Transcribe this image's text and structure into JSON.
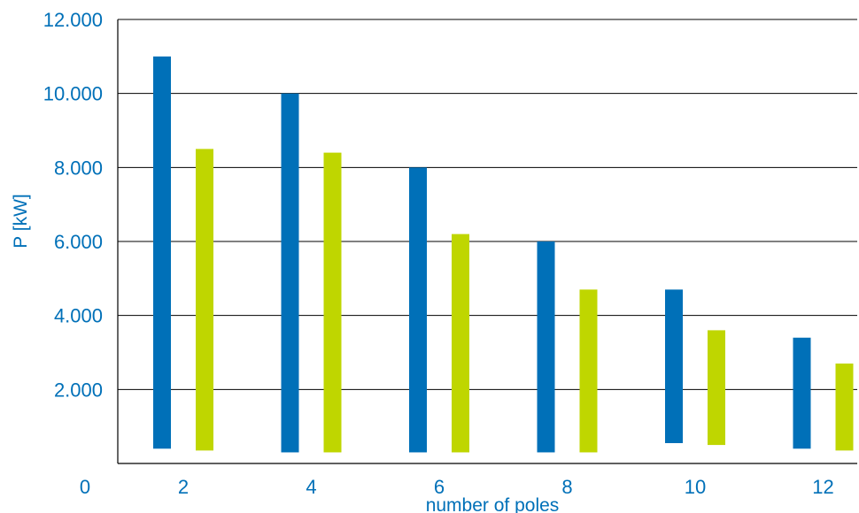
{
  "chart_data": {
    "type": "bar",
    "title": "",
    "xlabel": "number of poles",
    "ylabel": "P [kW]",
    "origin_label": "0",
    "ylim": [
      0,
      12000
    ],
    "y_ticks": [
      "2.000",
      "4.000",
      "6.000",
      "8.000",
      "10.000",
      "12.000"
    ],
    "y_tick_values": [
      2000,
      4000,
      6000,
      8000,
      10000,
      12000
    ],
    "categories": [
      "2",
      "4",
      "6",
      "8",
      "10",
      "12"
    ],
    "grid": "horizontal",
    "series": [
      {
        "color": "#0070b8",
        "ranges": [
          [
            400,
            11000
          ],
          [
            300,
            10000
          ],
          [
            300,
            8000
          ],
          [
            300,
            6000
          ],
          [
            550,
            4700
          ],
          [
            400,
            3400
          ]
        ]
      },
      {
        "color": "#bfd600",
        "ranges": [
          [
            350,
            8500
          ],
          [
            300,
            8400
          ],
          [
            300,
            6200
          ],
          [
            300,
            4700
          ],
          [
            500,
            3600
          ],
          [
            350,
            2700
          ]
        ]
      }
    ],
    "colors": {
      "text": "#0070b8",
      "axis": "#000000"
    }
  }
}
